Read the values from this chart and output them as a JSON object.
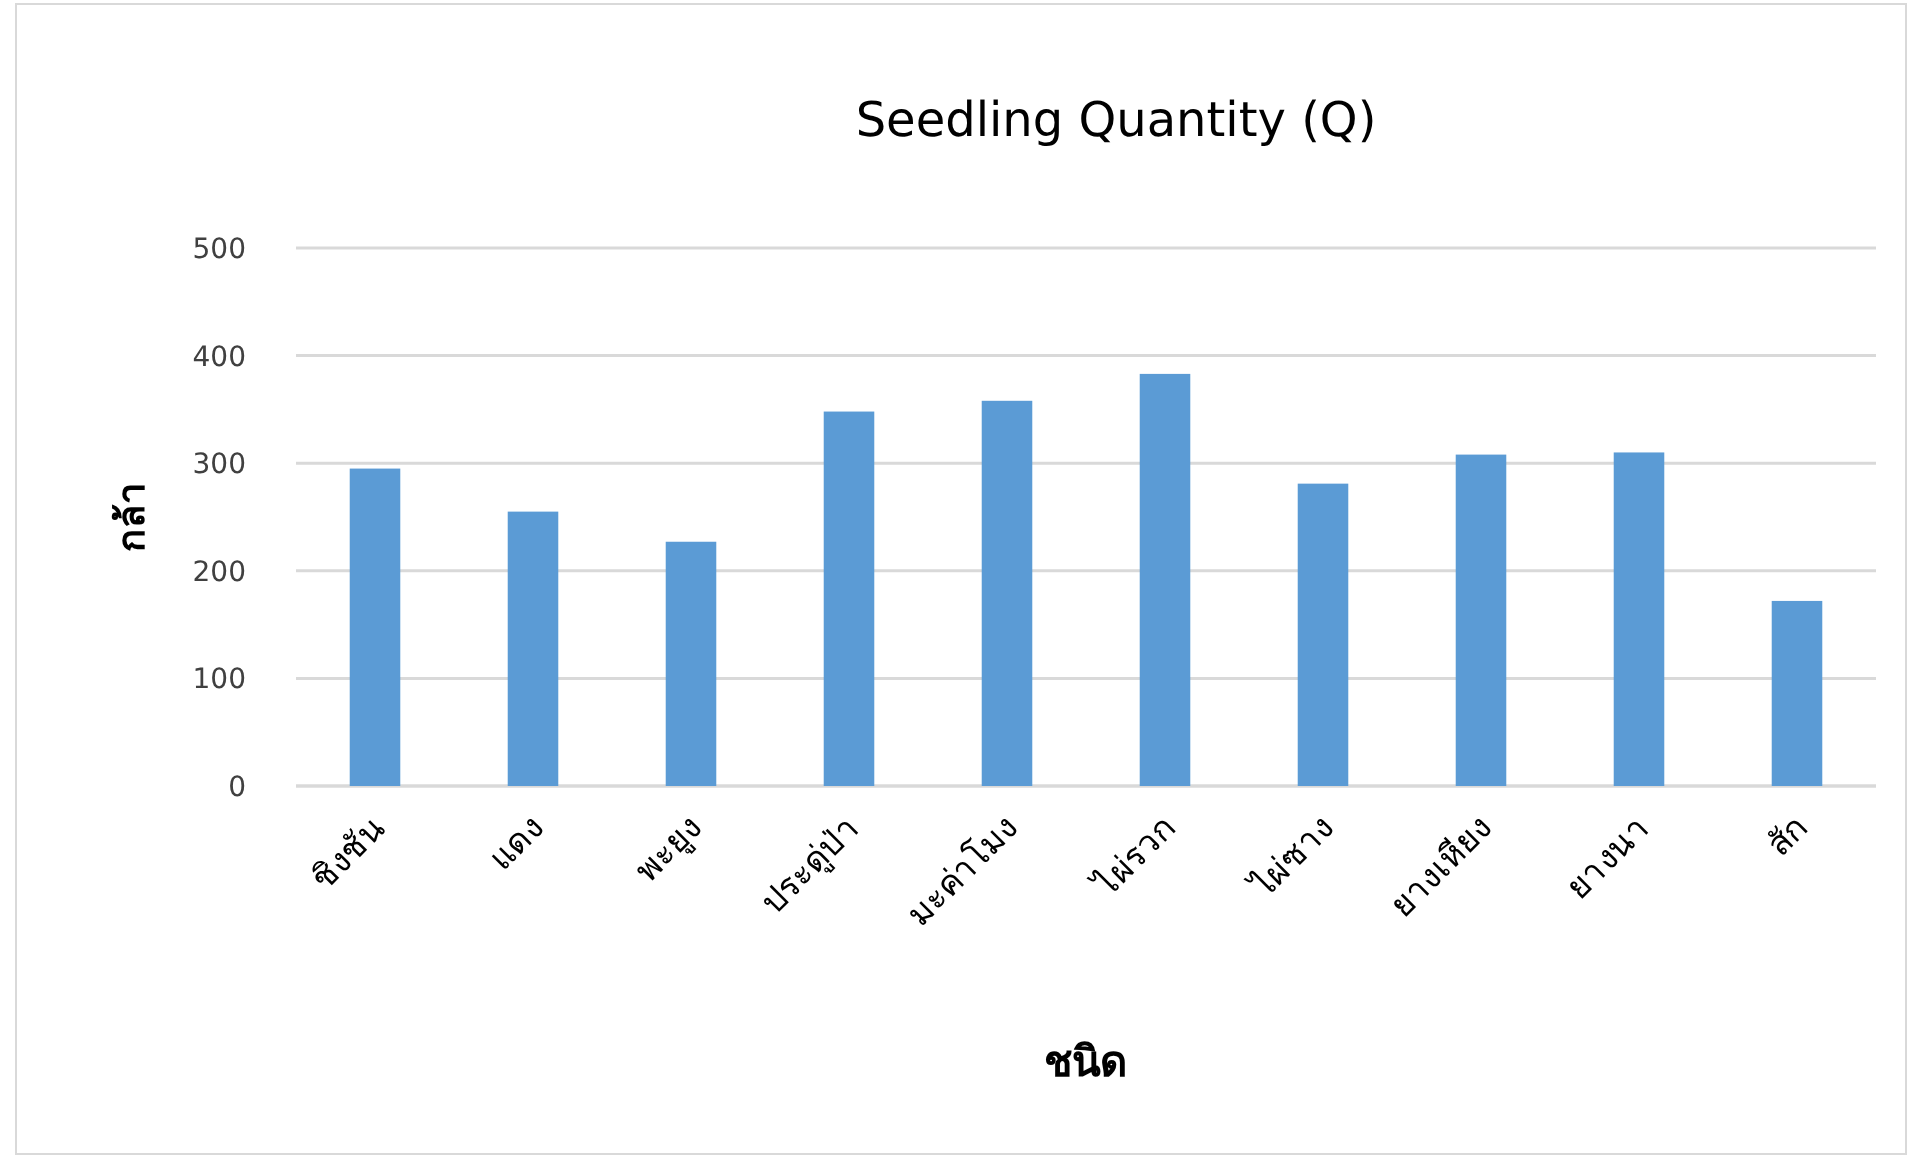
{
  "chart_data": {
    "type": "bar",
    "title": "Seedling Quantity (Q)",
    "xlabel": "ชนิด",
    "ylabel": "กล้า",
    "categories": [
      "ชิงชัน",
      "แดง",
      "พะยูง",
      "ประดู่ป่า",
      "มะค่าโมง",
      "ไผ่รวก",
      "ไผ่ซาง",
      "ยางเหียง",
      "ยางนา",
      "สัก"
    ],
    "values": [
      295,
      255,
      227,
      348,
      358,
      383,
      281,
      308,
      310,
      172
    ],
    "color": "#5b9bd5",
    "ylim": [
      0,
      500
    ],
    "yticks": [
      0,
      100,
      200,
      300,
      400,
      500
    ],
    "grid": "y"
  }
}
